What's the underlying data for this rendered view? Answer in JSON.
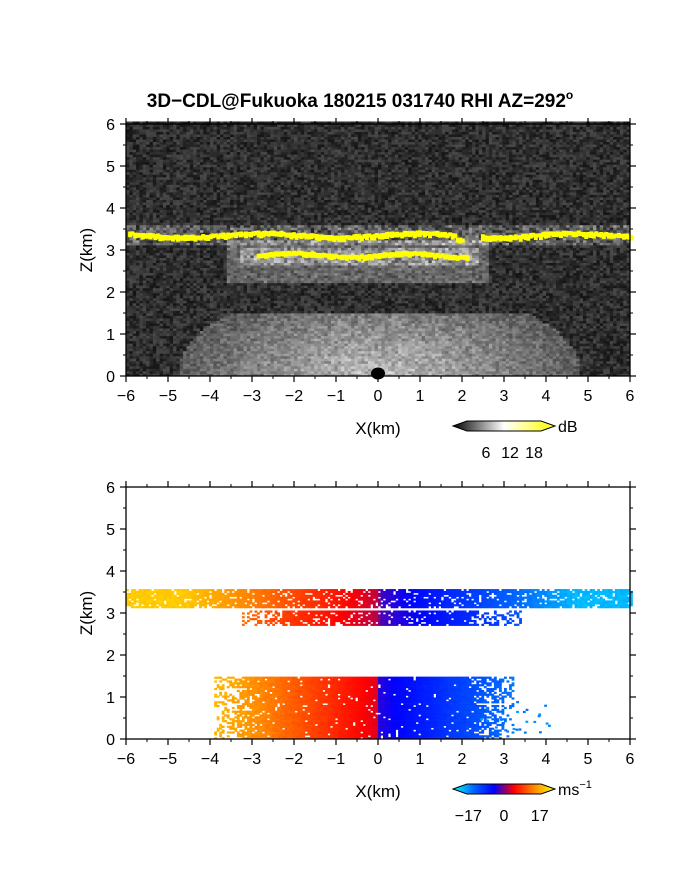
{
  "title": "3D−CDL@Fukuoka 180215 031740 RHI AZ=292",
  "title_superscript": "o",
  "chart_data": [
    {
      "type": "heatmap",
      "panel": "reflectivity",
      "xlabel": "X(km)",
      "ylabel": "Z(km)",
      "xlim": [
        -6,
        6
      ],
      "ylim": [
        0,
        6
      ],
      "xticks": [
        -6,
        -5,
        -4,
        -3,
        -2,
        -1,
        0,
        1,
        2,
        3,
        4,
        5,
        6
      ],
      "yticks": [
        0,
        1,
        2,
        3,
        4,
        5,
        6
      ],
      "xtick_labels": [
        "−6",
        "−5",
        "−4",
        "−3",
        "−2",
        "−1",
        "0",
        "1",
        "2",
        "3",
        "4",
        "5",
        "6"
      ],
      "ytick_labels": [
        "0",
        "1",
        "2",
        "3",
        "4",
        "5",
        "6"
      ],
      "colorbar": {
        "unit": "dB",
        "ticks": [
          6,
          12,
          18
        ],
        "tick_labels": [
          "6",
          "12",
          "18"
        ],
        "range": [
          0,
          21
        ],
        "colors": [
          "#000000",
          "#ffffff",
          "#ffff00"
        ]
      },
      "features": [
        {
          "name": "upper cloud layer",
          "x": [
            -6,
            6
          ],
          "z": [
            3.2,
            3.5
          ],
          "level": "high"
        },
        {
          "name": "lower cloud layer",
          "x": [
            -3,
            2.2
          ],
          "z": [
            2.7,
            3.0
          ],
          "level": "high"
        },
        {
          "name": "near-ground clutter",
          "x": [
            -4.5,
            4.5
          ],
          "z": [
            0,
            1.4
          ],
          "level": "medium"
        }
      ]
    },
    {
      "type": "heatmap",
      "panel": "doppler velocity",
      "xlabel": "X(km)",
      "ylabel": "Z(km)",
      "xlim": [
        -6,
        6
      ],
      "ylim": [
        0,
        6
      ],
      "xticks": [
        -6,
        -5,
        -4,
        -3,
        -2,
        -1,
        0,
        1,
        2,
        3,
        4,
        5,
        6
      ],
      "yticks": [
        0,
        1,
        2,
        3,
        4,
        5,
        6
      ],
      "xtick_labels": [
        "−6",
        "−5",
        "−4",
        "−3",
        "−2",
        "−1",
        "0",
        "1",
        "2",
        "3",
        "4",
        "5",
        "6"
      ],
      "ytick_labels": [
        "0",
        "1",
        "2",
        "3",
        "4",
        "5",
        "6"
      ],
      "colorbar": {
        "unit": "ms",
        "unit_superscript": "−1",
        "ticks": [
          -17,
          0,
          17
        ],
        "tick_labels": [
          "−17",
          "0",
          "17"
        ],
        "range": [
          -20,
          20
        ],
        "colors": [
          "#00ffff",
          "#0066ff",
          "#0000ff",
          "#ff0000",
          "#ff8c00",
          "#ffff00"
        ]
      },
      "features": [
        {
          "name": "upper cloud layer",
          "x": [
            -6,
            6
          ],
          "z": [
            3.2,
            3.5
          ],
          "velocity_at_left_edge": 17,
          "velocity_at_right_edge": -17
        },
        {
          "name": "lower cloud layer",
          "x": [
            -3.3,
            3.5
          ],
          "z": [
            2.7,
            3.05
          ],
          "velocity_at_left_edge": 12,
          "velocity_at_right_edge": -12
        },
        {
          "name": "boundary layer",
          "x": [
            -4,
            3.2
          ],
          "z": [
            0,
            1.45
          ],
          "velocity_at_left_edge": 17,
          "velocity_at_right_edge": -14
        }
      ]
    }
  ]
}
